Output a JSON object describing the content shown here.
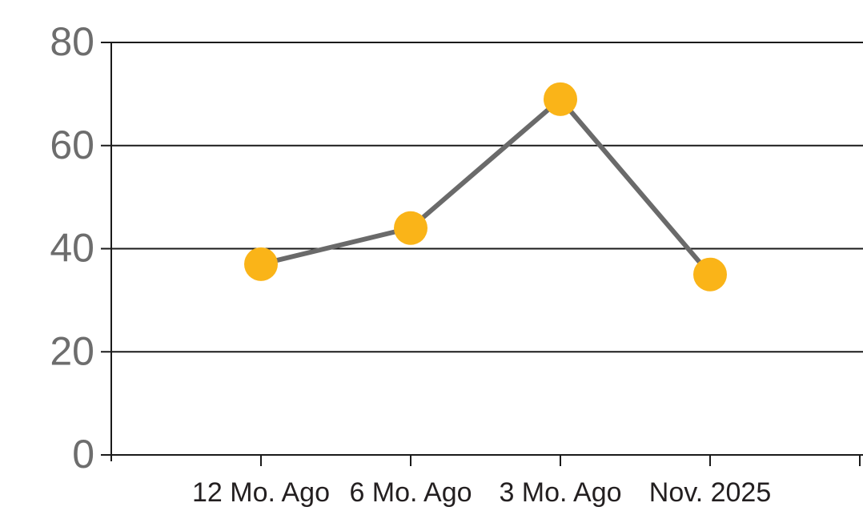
{
  "chart_data": {
    "type": "line",
    "title": "",
    "subtitle": "",
    "xlabel": "",
    "ylabel": "",
    "categories": [
      "12 Mo. Ago",
      "6 Mo. Ago",
      "3 Mo. Ago",
      "Nov. 2025"
    ],
    "series": [
      {
        "name": "value",
        "values": [
          37,
          44,
          69,
          35
        ]
      }
    ],
    "ylim": [
      0,
      80
    ],
    "yticks": [
      0,
      20,
      40,
      60,
      80
    ],
    "grid": "horizontal",
    "legend": "none",
    "marker_style": "filled-circle",
    "colors": {
      "marker": "#FAB418",
      "line": "#6A6A6A",
      "axis_and_grid": "#1A1A1A",
      "y_tick_label": "#6D6D6D",
      "x_tick_label": "#231F20",
      "background": "#FFFFFF"
    }
  }
}
